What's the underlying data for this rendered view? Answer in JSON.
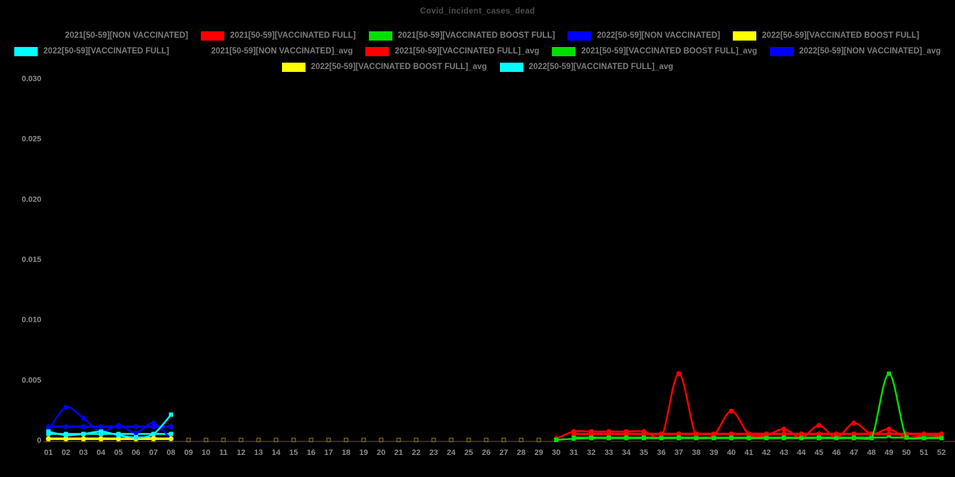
{
  "chart": {
    "title": "Covid_incident_cases_dead"
  },
  "legend": {
    "rows": [
      [
        {
          "label": "2021[50-59][NON VACCINATED]",
          "color": "#000000"
        },
        {
          "label": "2021[50-59][VACCINATED FULL]",
          "color": "#ff0000"
        },
        {
          "label": "2021[50-59][VACCINATED BOOST FULL]",
          "color": "#00e000"
        },
        {
          "label": "2022[50-59][NON VACCINATED]",
          "color": "#0000ff"
        },
        {
          "label": "2022[50-59][VACCINATED BOOST FULL]",
          "color": "#ffff00"
        }
      ],
      [
        {
          "label": "2022[50-59][VACCINATED FULL]",
          "color": "#00ffff"
        },
        {
          "label": "2021[50-59][NON VACCINATED]_avg",
          "color": "#000000"
        },
        {
          "label": "2021[50-59][VACCINATED FULL]_avg",
          "color": "#ff0000"
        },
        {
          "label": "2021[50-59][VACCINATED BOOST FULL]_avg",
          "color": "#00e000"
        },
        {
          "label": "2022[50-59][NON VACCINATED]_avg",
          "color": "#0000ff"
        }
      ],
      [
        {
          "label": "2022[50-59][VACCINATED BOOST FULL]_avg",
          "color": "#ffff00"
        },
        {
          "label": "2022[50-59][VACCINATED FULL]_avg",
          "color": "#00ffff"
        }
      ]
    ]
  },
  "chart_data": {
    "type": "line",
    "title": "Covid_incident_cases_dead",
    "xlabel": "",
    "ylabel": "",
    "xlim": [
      1,
      52
    ],
    "ylim": [
      0,
      0.03
    ],
    "grid": false,
    "legend_position": "top",
    "background": "#000000",
    "axis_line_color": "#3a3008",
    "baseline_marker_color": "#6b5a14",
    "x_tick_labels": [
      "01",
      "02",
      "03",
      "04",
      "05",
      "06",
      "07",
      "08",
      "09",
      "10",
      "11",
      "12",
      "13",
      "14",
      "15",
      "16",
      "17",
      "18",
      "19",
      "20",
      "21",
      "22",
      "23",
      "24",
      "25",
      "26",
      "27",
      "28",
      "29",
      "30",
      "31",
      "32",
      "33",
      "34",
      "35",
      "36",
      "37",
      "38",
      "39",
      "40",
      "41",
      "42",
      "43",
      "44",
      "45",
      "46",
      "47",
      "48",
      "49",
      "50",
      "51",
      "52"
    ],
    "y_ticks": [
      {
        "v": 0,
        "label": "0"
      },
      {
        "v": 0.005,
        "label": "0.005"
      },
      {
        "v": 0.01,
        "label": "0.010"
      },
      {
        "v": 0.015,
        "label": "0.015"
      },
      {
        "v": 0.02,
        "label": "0.020"
      },
      {
        "v": 0.025,
        "label": "0.025"
      },
      {
        "v": 0.03,
        "label": "0.030"
      }
    ],
    "series": [
      {
        "name": "2021[50-59][NON VACCINATED]",
        "color": "#000000",
        "marker": "circle",
        "width": 2.5,
        "x": [
          30,
          31,
          32,
          33,
          34,
          35,
          36,
          37,
          38,
          39,
          40,
          41,
          42,
          43,
          44,
          45,
          46,
          47,
          48,
          49,
          50,
          51,
          52
        ],
        "y": [
          0,
          0,
          0,
          0,
          0,
          0,
          0,
          0,
          0,
          0,
          0,
          0,
          0,
          0,
          0,
          0,
          0,
          0,
          0,
          0,
          0,
          0,
          0
        ]
      },
      {
        "name": "2021[50-59][VACCINATED FULL]",
        "color": "#ff0000",
        "marker": "circle",
        "width": 2.5,
        "x": [
          30,
          31,
          32,
          33,
          34,
          35,
          36,
          37,
          38,
          39,
          40,
          41,
          42,
          43,
          44,
          45,
          46,
          47,
          48,
          49,
          50,
          51,
          52
        ],
        "y": [
          0.0001,
          0.0007,
          0.0007,
          0.0007,
          0.0007,
          0.0007,
          0.0002,
          0.0055,
          0.0003,
          0.0004,
          0.0024,
          0.0005,
          0.0004,
          0.0009,
          0.0002,
          0.0012,
          0.0002,
          0.0014,
          0.0005,
          0.0009,
          0.0002,
          0.0004,
          0.0003
        ]
      },
      {
        "name": "2021[50-59][VACCINATED BOOST FULL]",
        "color": "#00e000",
        "marker": "square",
        "width": 2.5,
        "x": [
          30,
          31,
          32,
          33,
          34,
          35,
          36,
          37,
          38,
          39,
          40,
          41,
          42,
          43,
          44,
          45,
          46,
          47,
          48,
          49,
          50,
          51,
          52
        ],
        "y": [
          0,
          0.0001,
          0.00015,
          0.00015,
          0.00015,
          0.00015,
          0.00015,
          0.00015,
          0.00015,
          0.00015,
          0.00015,
          0.00015,
          0.00015,
          0.00015,
          0.00015,
          0.00015,
          0.00015,
          0.00015,
          0.00015,
          0.0055,
          0.0002,
          0.00015,
          0.00015
        ]
      },
      {
        "name": "2022[50-59][NON VACCINATED]",
        "color": "#0000ff",
        "marker": "circle",
        "width": 2.5,
        "x": [
          1,
          2,
          3,
          4,
          5,
          6,
          7,
          8
        ],
        "y": [
          0.0008,
          0.0027,
          0.0018,
          0.0007,
          0.0012,
          0.0006,
          0.0014,
          5e-05
        ]
      },
      {
        "name": "2022[50-59][VACCINATED BOOST FULL]",
        "color": "#ffff00",
        "marker": "circle",
        "width": 2.5,
        "x": [
          1,
          2,
          3,
          4,
          5,
          6,
          7,
          8
        ],
        "y": [
          0.0001,
          0.0001,
          0.0001,
          0.0001,
          0.0001,
          0.0002,
          0.00015,
          0.0001
        ]
      },
      {
        "name": "2022[50-59][VACCINATED FULL]",
        "color": "#00ffff",
        "marker": "square",
        "width": 2.5,
        "x": [
          1,
          2,
          3,
          4,
          5,
          6,
          7,
          8
        ],
        "y": [
          0.0007,
          0.0004,
          0.0005,
          0.0007,
          0.0004,
          0.0002,
          0.0005,
          0.0021
        ]
      },
      {
        "name": "2021[50-59][NON VACCINATED]_avg",
        "color": "#000000",
        "marker": "circle",
        "width": 3.5,
        "x": [
          30,
          31,
          32,
          33,
          34,
          35,
          36,
          37,
          38,
          39,
          40,
          41,
          42,
          43,
          44,
          45,
          46,
          47,
          48,
          49,
          50,
          51,
          52
        ],
        "y": [
          0,
          0,
          0,
          0,
          0,
          0,
          0,
          0,
          0,
          0,
          0,
          0,
          0,
          0,
          0,
          0,
          0,
          0,
          0,
          0,
          0,
          0,
          0
        ]
      },
      {
        "name": "2021[50-59][VACCINATED FULL]_avg",
        "color": "#ff0000",
        "marker": "circle",
        "width": 3.5,
        "x": [
          31,
          32,
          33,
          34,
          35,
          36,
          37,
          38,
          39,
          40,
          41,
          42,
          43,
          44,
          45,
          46,
          47,
          48,
          49,
          50,
          51,
          52
        ],
        "y": [
          0.0005,
          0.0005,
          0.0005,
          0.0005,
          0.0005,
          0.0005,
          0.0005,
          0.0005,
          0.0005,
          0.0005,
          0.0005,
          0.0005,
          0.0005,
          0.0005,
          0.0005,
          0.0005,
          0.0005,
          0.0005,
          0.0005,
          0.0005,
          0.0005,
          0.0005
        ]
      },
      {
        "name": "2021[50-59][VACCINATED BOOST FULL]_avg",
        "color": "#00e000",
        "marker": "square",
        "width": 2.5,
        "x": [
          31,
          32,
          33,
          34,
          35,
          36,
          37,
          38,
          39,
          40,
          41,
          42,
          43,
          44,
          45,
          46,
          47,
          48,
          49,
          50,
          51,
          52
        ],
        "y": [
          0.0002,
          0.0002,
          0.0002,
          0.0002,
          0.0002,
          0.0002,
          0.0002,
          0.0002,
          0.0002,
          0.0002,
          0.0002,
          0.0002,
          0.0002,
          0.0002,
          0.0002,
          0.0002,
          0.0002,
          0.0002,
          0.0002,
          0.0002,
          0.0002,
          0.0002
        ]
      },
      {
        "name": "2022[50-59][NON VACCINATED]_avg",
        "color": "#0000ff",
        "marker": "circle",
        "width": 3.5,
        "x": [
          1,
          2,
          3,
          4,
          5,
          6,
          7,
          8
        ],
        "y": [
          0.0011,
          0.0011,
          0.0011,
          0.0011,
          0.0011,
          0.0011,
          0.0011,
          0.0011
        ]
      },
      {
        "name": "2022[50-59][VACCINATED BOOST FULL]_avg",
        "color": "#ffff00",
        "marker": "circle",
        "width": 3.5,
        "x": [
          1,
          2,
          3,
          4,
          5,
          6,
          7,
          8
        ],
        "y": [
          0.0001,
          0.0001,
          0.0001,
          0.0001,
          0.0001,
          0.0001,
          0.0001,
          0.0001
        ]
      },
      {
        "name": "2022[50-59][VACCINATED FULL]_avg",
        "color": "#00ffff",
        "marker": "square",
        "width": 2.5,
        "x": [
          1,
          2,
          3,
          4,
          5,
          6,
          7,
          8
        ],
        "y": [
          0.0005,
          0.0005,
          0.0005,
          0.0005,
          0.0005,
          0.0005,
          0.0005,
          0.0005
        ]
      }
    ]
  }
}
